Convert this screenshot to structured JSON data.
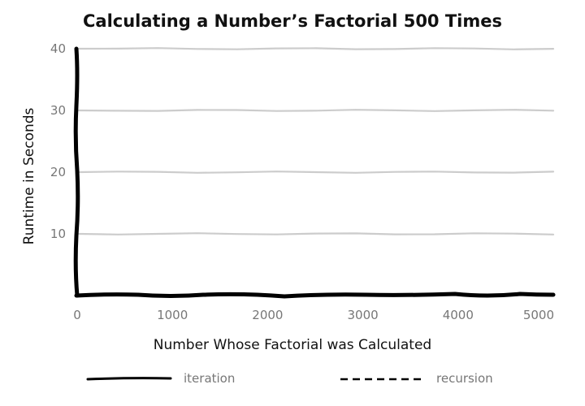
{
  "chart_data": {
    "type": "line",
    "title": "Calculating a Number’s Factorial 500 Times",
    "xlabel": "Number Whose Factorial was Calculated",
    "ylabel": "Runtime in Seconds",
    "xlim": [
      0,
      5000
    ],
    "ylim": [
      0,
      40
    ],
    "x_ticks": [
      0,
      1000,
      2000,
      3000,
      4000,
      5000
    ],
    "y_ticks": [
      10,
      20,
      30,
      40
    ],
    "x_tick_labels": [
      "0",
      "1000",
      "2000",
      "3000",
      "4000",
      "5000"
    ],
    "y_tick_labels": [
      "10",
      "20",
      "30",
      "40"
    ],
    "grid": "horizontal",
    "legend": "bottom",
    "series": [
      {
        "name": "iteration",
        "line_style": "solid",
        "color": "#000000",
        "x": [],
        "y": []
      },
      {
        "name": "recursion",
        "line_style": "dashed",
        "color": "#000000",
        "x": [],
        "y": []
      }
    ]
  }
}
